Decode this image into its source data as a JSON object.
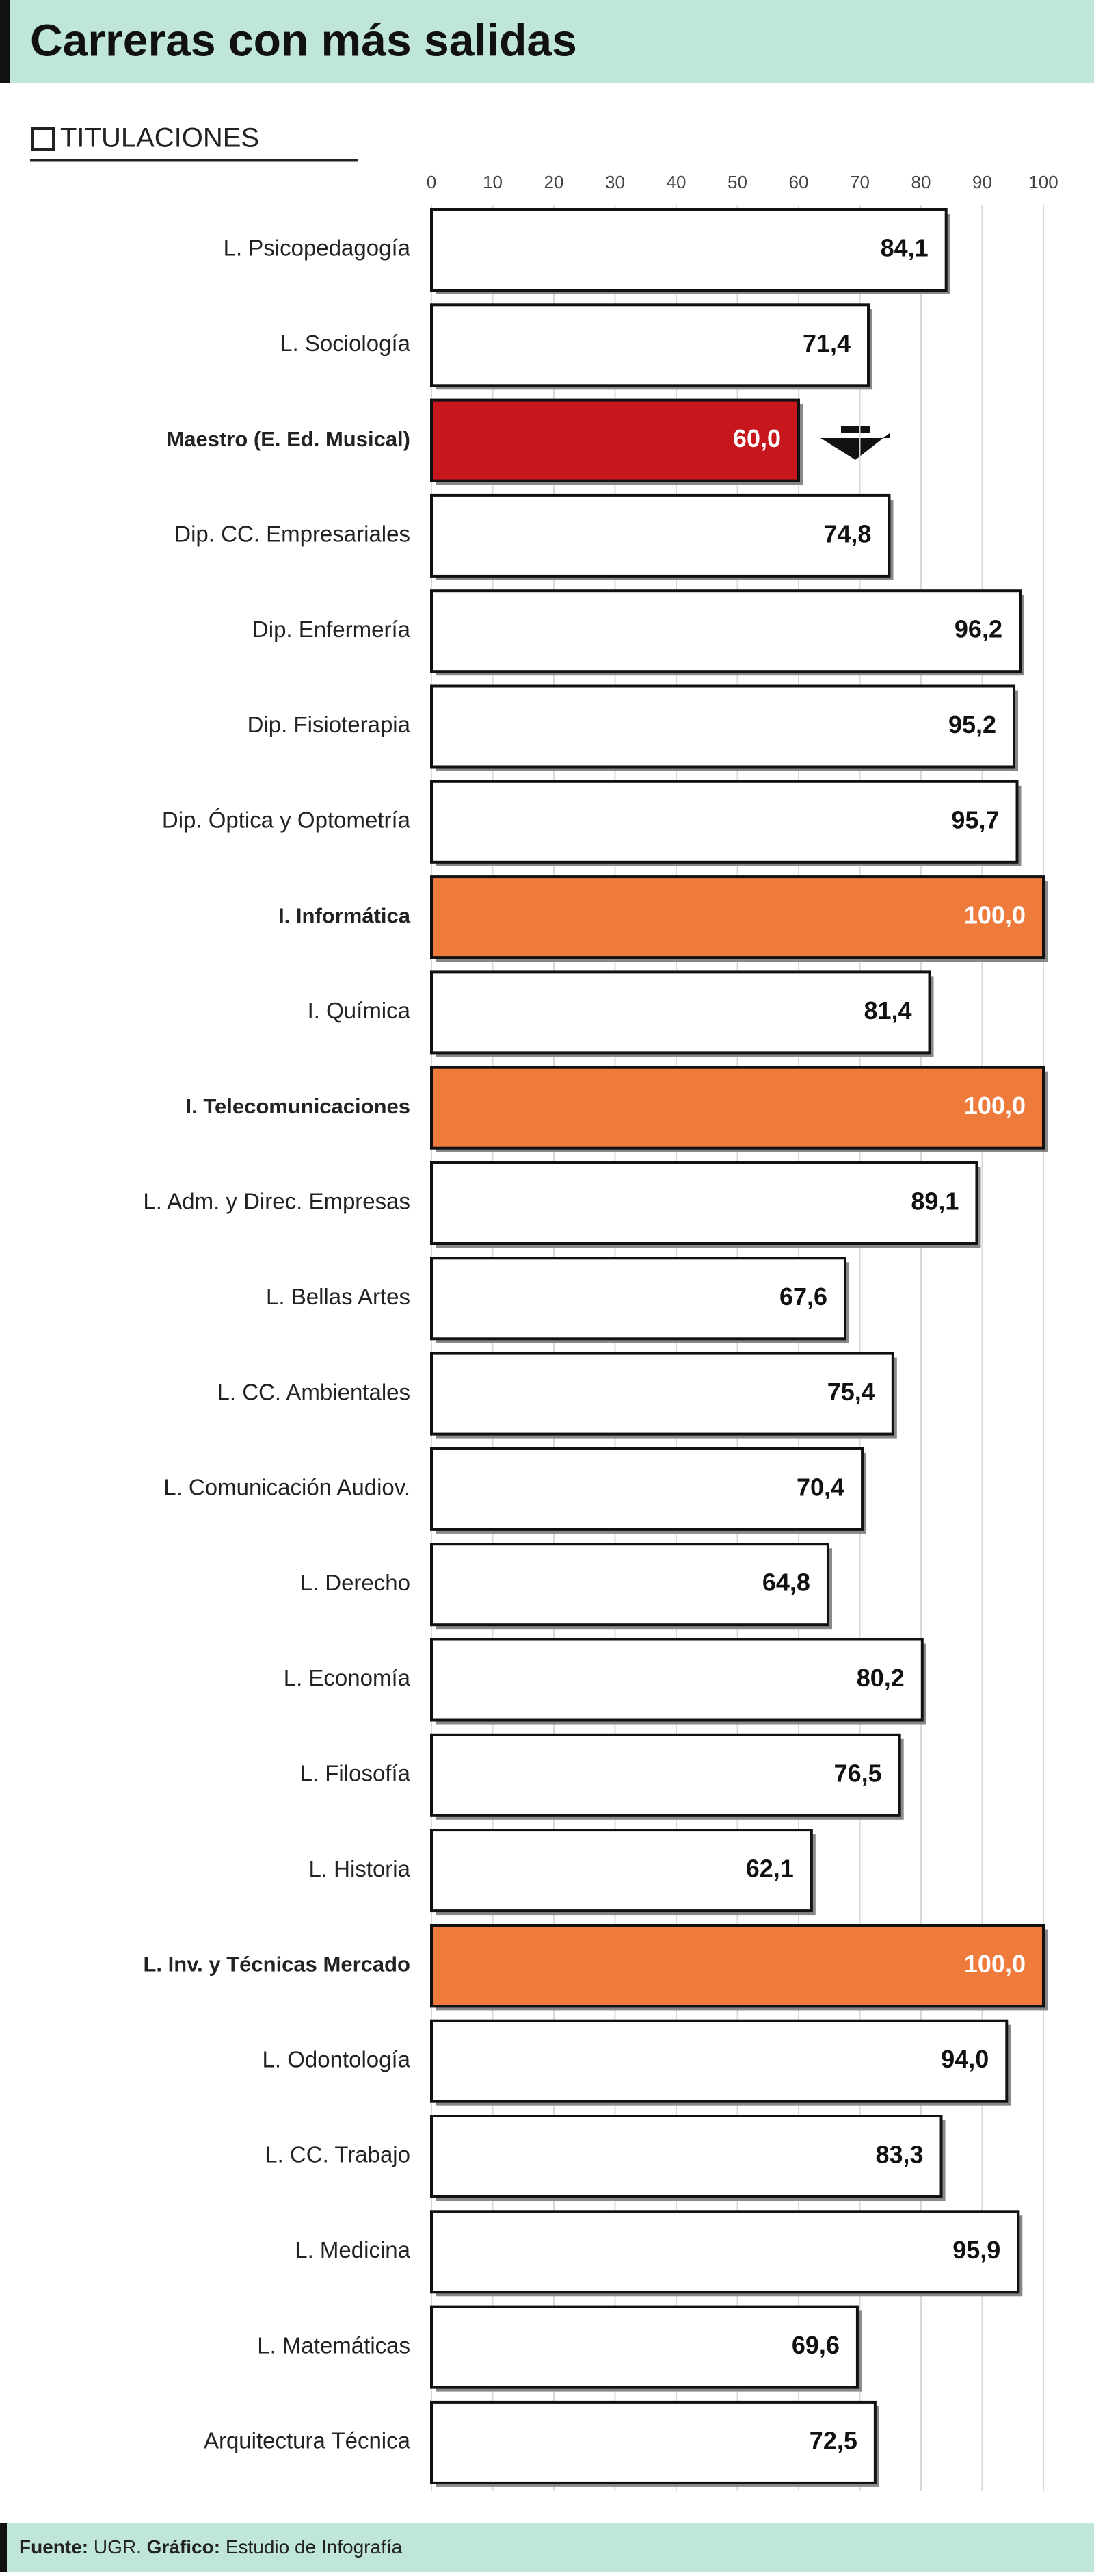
{
  "chart_data": {
    "type": "bar",
    "orientation": "horizontal",
    "title": "Carreras con más salidas",
    "subtitle": "TITULACIONES",
    "categories": [
      "L. Psicopedagogía",
      "L. Sociología",
      "Maestro (E. Ed. Musical)",
      "Dip. CC. Empresariales",
      "Dip. Enfermería",
      "Dip. Fisioterapia",
      "Dip. Óptica y Optometría",
      "I. Informática",
      "I. Química",
      "I. Telecomunicaciones",
      "L. Adm. y Direc. Empresas",
      "L. Bellas Artes",
      "L. CC. Ambientales",
      "L. Comunicación Audiov.",
      "L. Derecho",
      "L. Economía",
      "L. Filosofía",
      "L. Historia",
      "L. Inv. y Técnicas Mercado",
      "L. Odontología",
      "L. CC. Trabajo",
      "L. Medicina",
      "L. Matemáticas",
      "Arquitectura Técnica"
    ],
    "values": [
      84.1,
      71.4,
      60.0,
      74.8,
      96.2,
      95.2,
      95.7,
      100.0,
      81.4,
      100.0,
      89.1,
      67.6,
      75.4,
      70.4,
      64.8,
      80.2,
      76.5,
      62.1,
      100.0,
      94.0,
      83.3,
      95.9,
      69.6,
      72.5
    ],
    "value_labels": [
      "84,1",
      "71,4",
      "60,0",
      "74,8",
      "96,2",
      "95,2",
      "95,7",
      "100,0",
      "81,4",
      "100,0",
      "89,1",
      "67,6",
      "75,4",
      "70,4",
      "64,8",
      "80,2",
      "76,5",
      "62,1",
      "100,0",
      "94,0",
      "83,3",
      "95,9",
      "69,6",
      "72,5"
    ],
    "colors": [
      "#ffffff",
      "#ffffff",
      "#c8161d",
      "#ffffff",
      "#ffffff",
      "#ffffff",
      "#ffffff",
      "#ee7a3b",
      "#ffffff",
      "#ee7a3b",
      "#ffffff",
      "#ffffff",
      "#ffffff",
      "#ffffff",
      "#ffffff",
      "#ffffff",
      "#ffffff",
      "#ffffff",
      "#ee7a3b",
      "#ffffff",
      "#ffffff",
      "#ffffff",
      "#ffffff",
      "#ffffff"
    ],
    "xlim": [
      0,
      100
    ],
    "xticks": [
      0,
      10,
      20,
      30,
      40,
      50,
      60,
      70,
      80,
      90,
      100
    ],
    "grid": true,
    "source_label": "Fuente:",
    "source": "UGR.",
    "credit_label": "Gráfico:",
    "credit": "Estudio de Infografía"
  }
}
